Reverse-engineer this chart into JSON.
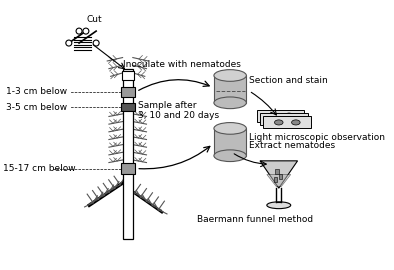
{
  "bg_color": "#ffffff",
  "labels": {
    "cut": "Cut",
    "inoculate": "Inoculate with nematodes",
    "sample_after": "Sample after\n3, 10 and 20 days",
    "section_stain": "Section and stain",
    "light_micro": "Light microscopic observation",
    "extract": "Extract nematodes",
    "baermann": "Baermann funnel method",
    "seg1": "1-3 cm below",
    "seg2": "3-5 cm below",
    "seg3": "15-17 cm below"
  },
  "stem_color": "#ffffff",
  "stem_outline": "#000000",
  "segment_color_light": "#999999",
  "segment_color_dark": "#555555",
  "cylinder_color": "#bbbbbb",
  "cylinder_outline": "#555555",
  "arrow_color": "#000000",
  "needle_color": "#555555"
}
